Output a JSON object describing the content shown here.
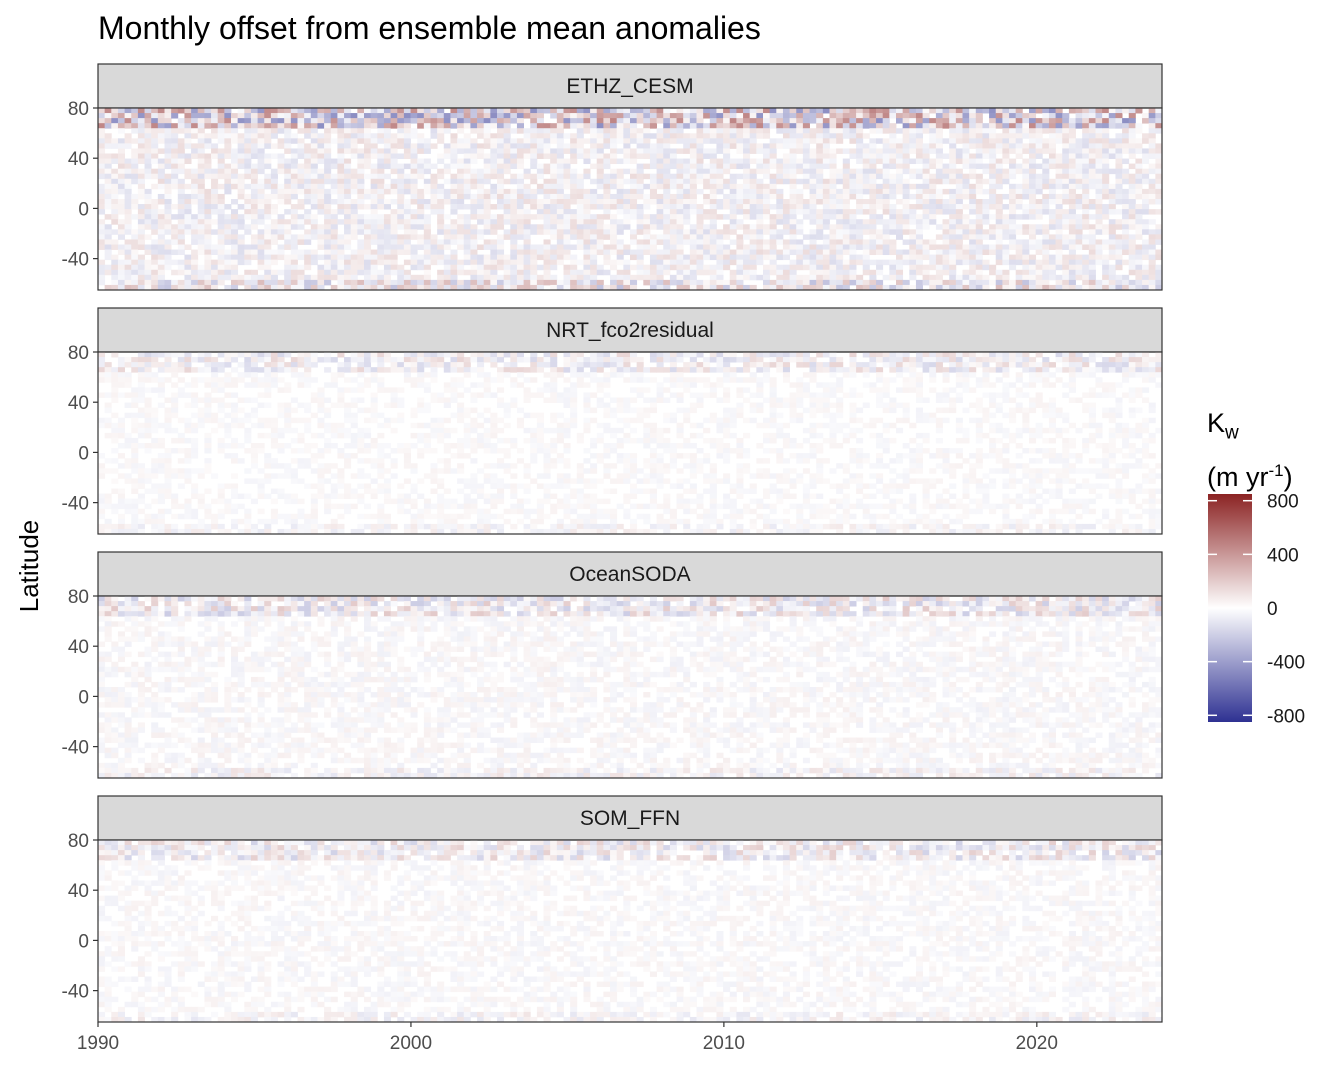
{
  "title": "Monthly offset from ensemble mean anomalies",
  "chart_data": {
    "type": "heatmap",
    "title": "Monthly offset from ensemble mean anomalies",
    "xlabel": "",
    "ylabel": "Latitude",
    "x_ticks": [
      1990,
      2000,
      2010,
      2020
    ],
    "y_ticks": [
      80,
      40,
      0,
      -40
    ],
    "xlim": [
      1990,
      2024
    ],
    "ylim": [
      -65,
      80
    ],
    "panels": [
      {
        "name": "ETHZ_CESM",
        "intensity": 1.0
      },
      {
        "name": "NRT_fco2residual",
        "intensity": 0.35
      },
      {
        "name": "OceanSODA",
        "intensity": 0.45
      },
      {
        "name": "SOM_FFN",
        "intensity": 0.4
      }
    ],
    "legend": {
      "title_main": "K",
      "title_sub": "w",
      "title_unit_pre": "(m yr",
      "title_unit_sup": "-1",
      "title_unit_post": ")",
      "breaks": [
        800,
        400,
        0,
        -400,
        -800
      ],
      "labels": [
        "800",
        "400",
        "0",
        "-400",
        "-800"
      ],
      "limits": [
        -850,
        850
      ],
      "colors": {
        "high": "#8b2323",
        "mid": "#ffffff",
        "low": "#2e3192"
      },
      "placement": "right"
    }
  }
}
